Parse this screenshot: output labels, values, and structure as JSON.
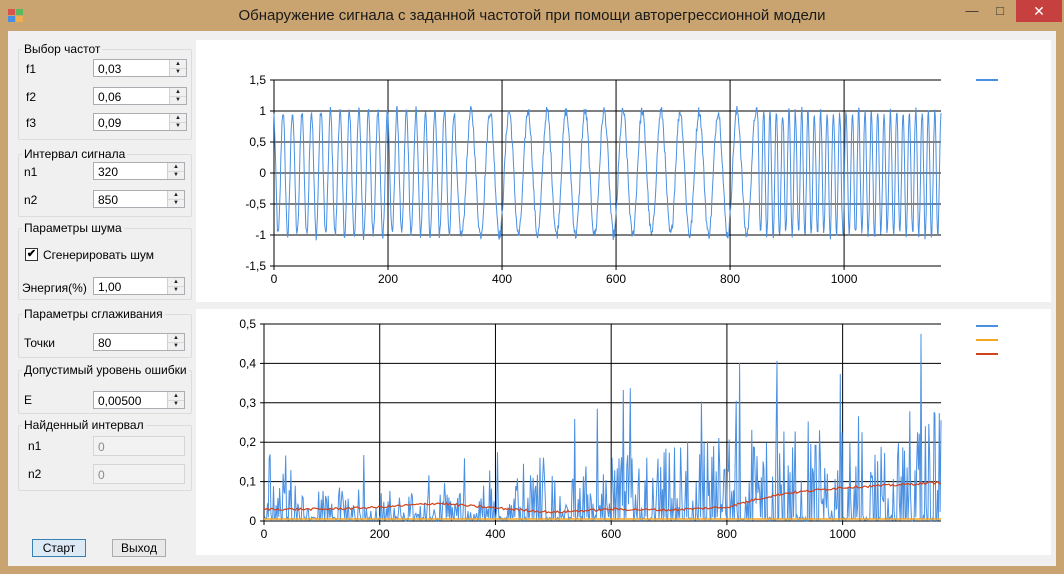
{
  "window": {
    "title": "Обнаружение сигнала с заданной частотой при помощи авторегрессионной модели",
    "min_glyph": "—",
    "max_glyph": "□",
    "close_glyph": "✕",
    "icon": "winforms-app-icon"
  },
  "freq_group": {
    "legend": "Выбор частот",
    "fields": [
      {
        "label": "f1",
        "value": "0,03"
      },
      {
        "label": "f2",
        "value": "0,06"
      },
      {
        "label": "f3",
        "value": "0,09"
      }
    ]
  },
  "interval_group": {
    "legend": "Интервал сигнала",
    "fields": [
      {
        "label": "n1",
        "value": "320"
      },
      {
        "label": "n2",
        "value": "850"
      }
    ]
  },
  "noise_group": {
    "legend": "Параметры шума",
    "checkbox_label": "Сгенерировать шум",
    "checkbox_checked": true,
    "energy_label": "Энергия(%)",
    "energy_value": "1,00"
  },
  "smoothing_group": {
    "legend": "Параметры сглаживания",
    "points_label": "Точки",
    "points_value": "80"
  },
  "error_group": {
    "legend": "Допустимый уровень ошибки",
    "e_label": "E",
    "e_value": "0,00500"
  },
  "found_group": {
    "legend": "Найденный интервал",
    "fields": [
      {
        "label": "n1",
        "value": "0"
      },
      {
        "label": "n2",
        "value": "0"
      }
    ]
  },
  "buttons": {
    "start": "Старт",
    "exit": "Выход"
  },
  "chart_data": [
    {
      "type": "line",
      "title": "",
      "xlim": [
        0,
        1170
      ],
      "ylim": [
        -1.5,
        1.5
      ],
      "x_ticks": [
        "0",
        "200",
        "400",
        "600",
        "800",
        "1000"
      ],
      "y_ticks": [
        "1,5",
        "1",
        "0,5",
        "0",
        "-0,5",
        "-1",
        "-1,5"
      ],
      "grid": true,
      "legend_position": "top-right",
      "series": [
        {
          "color": "#4a90e2",
          "segments": [
            {
              "x_start": 0,
              "x_end": 320,
              "frequency": 0.06
            },
            {
              "x_start": 320,
              "x_end": 850,
              "frequency": 0.03
            },
            {
              "x_start": 850,
              "x_end": 1170,
              "frequency": 0.09
            }
          ],
          "amplitude": 1.0,
          "noise_energy_percent": 1.0
        }
      ]
    },
    {
      "type": "line",
      "title": "",
      "xlim": [
        0,
        1170
      ],
      "ylim": [
        0,
        0.5
      ],
      "x_ticks": [
        "0",
        "200",
        "400",
        "600",
        "800",
        "1000"
      ],
      "y_ticks": [
        "0,5",
        "0,4",
        "0,3",
        "0,2",
        "0,1",
        "0"
      ],
      "grid": true,
      "legend_position": "top-right",
      "series": [
        {
          "color": "#4a90e2",
          "description_level": [
            [
              0,
              0.04
            ],
            [
              320,
              0.03
            ],
            [
              850,
              0.1
            ],
            [
              1170,
              0.12
            ]
          ],
          "peak_max": 0.49
        },
        {
          "color": "#f5a623",
          "constant": 0.005
        },
        {
          "color": "#d0421b",
          "values": [
            [
              0,
              0.03
            ],
            [
              100,
              0.03
            ],
            [
              200,
              0.035
            ],
            [
              300,
              0.045
            ],
            [
              400,
              0.033
            ],
            [
              500,
              0.022
            ],
            [
              600,
              0.03
            ],
            [
              700,
              0.028
            ],
            [
              800,
              0.035
            ],
            [
              850,
              0.055
            ],
            [
              900,
              0.07
            ],
            [
              1000,
              0.085
            ],
            [
              1100,
              0.092
            ],
            [
              1170,
              0.098
            ]
          ]
        }
      ]
    }
  ]
}
